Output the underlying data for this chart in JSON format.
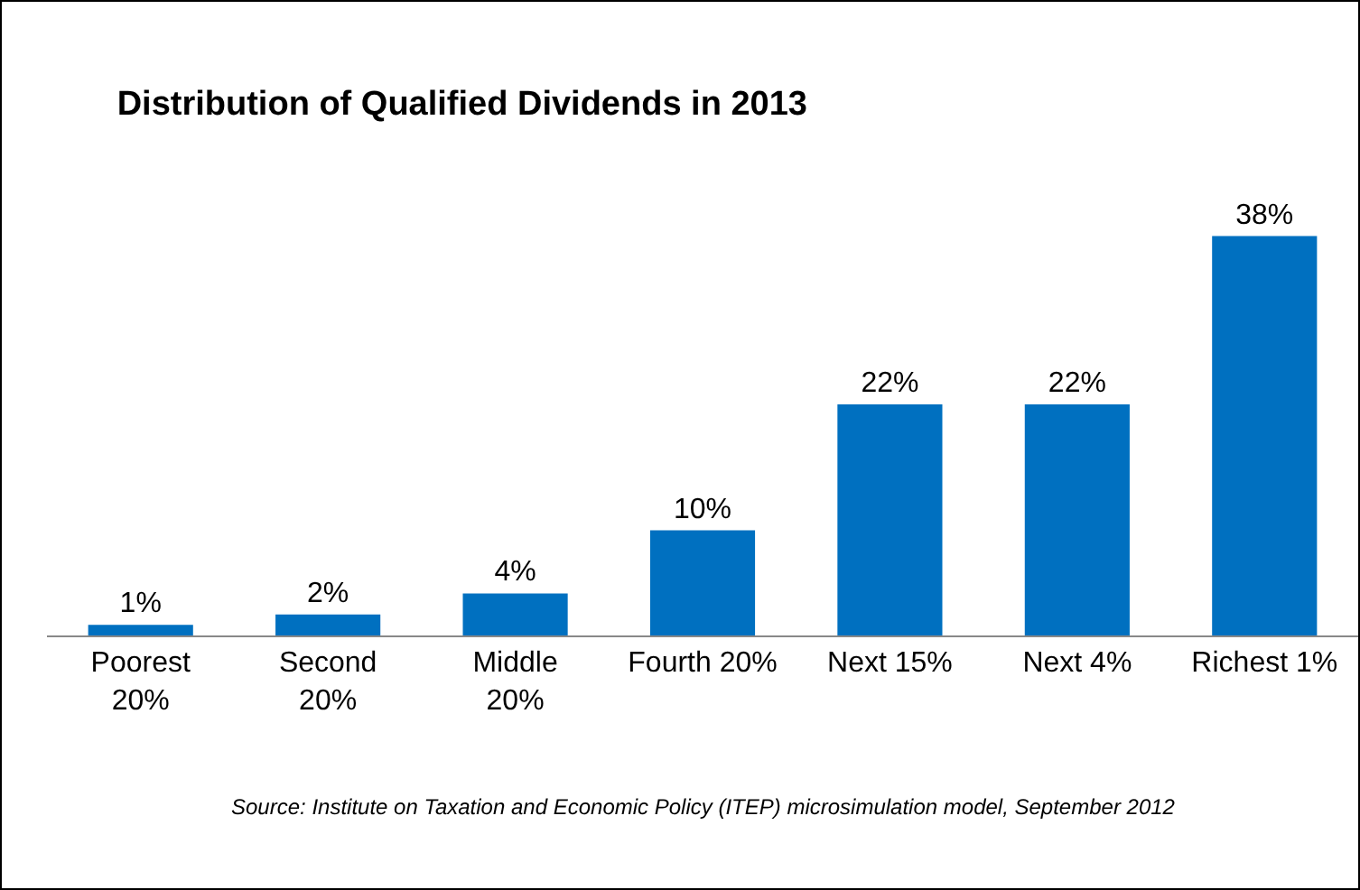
{
  "chart_data": {
    "type": "bar",
    "title": "Distribution of Qualified Dividends in 2013",
    "categories": [
      "Poorest\n20%",
      "Second\n20%",
      "Middle\n20%",
      "Fourth 20%",
      "Next 15%",
      "Next 4%",
      "Richest 1%"
    ],
    "values": [
      1,
      2,
      4,
      10,
      22,
      22,
      38
    ],
    "value_labels": [
      "1%",
      "2%",
      "4%",
      "10%",
      "22%",
      "22%",
      "38%"
    ],
    "color": "#0070c0",
    "annotations": [
      "Source: Institute on Taxation and Economic Policy (ITEP) microsimulation model, September 2012"
    ]
  }
}
